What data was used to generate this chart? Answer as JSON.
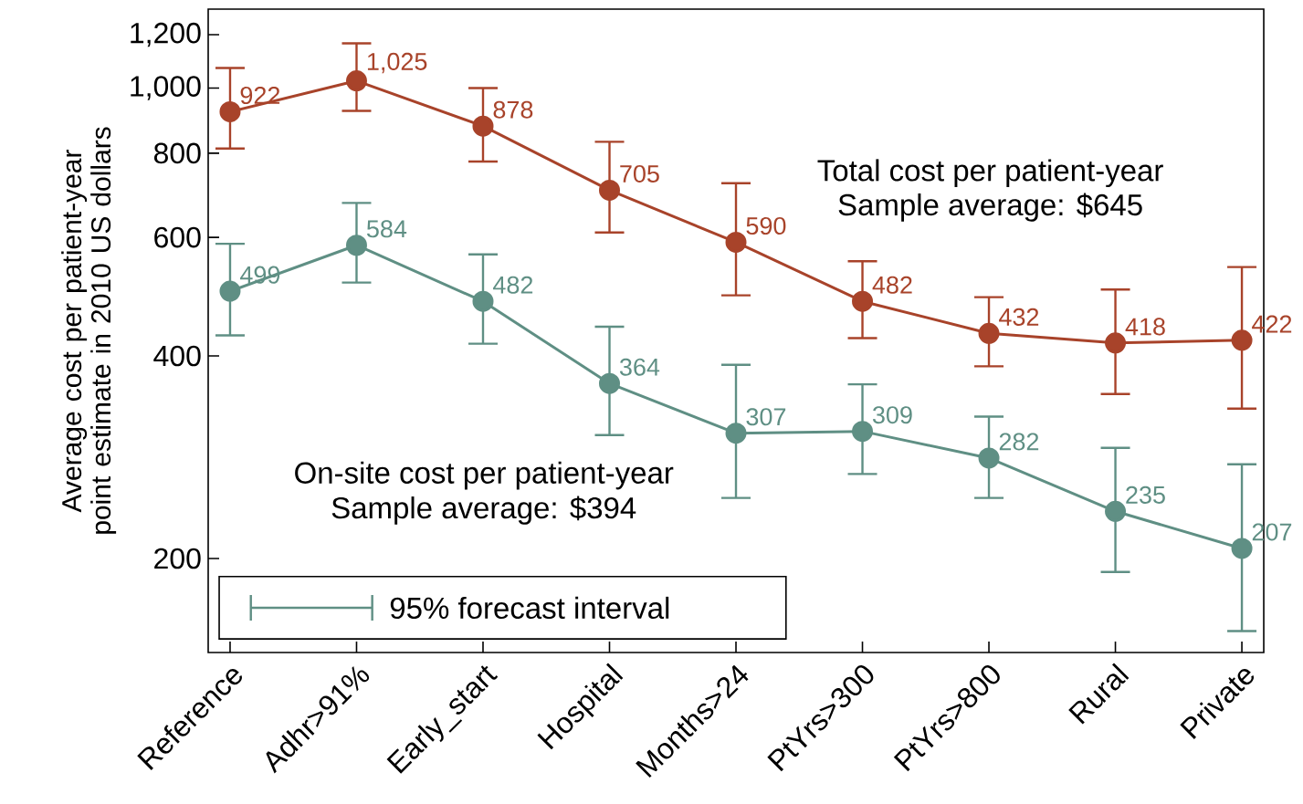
{
  "chart_data": {
    "type": "line",
    "log": "y",
    "ylabel": "Average cost per patient-year point estimate in 2010 US dollars",
    "categories": [
      "Reference",
      "Adhr>91%",
      "Early_start",
      "Hospital",
      "Months>24",
      "PtYrs>300",
      "PtYrs>800",
      "Rural",
      "Private"
    ],
    "series": [
      {
        "color": "#a8432a",
        "values": [
          922,
          1025,
          878,
          705,
          590,
          482,
          432,
          418,
          422
        ],
        "value_labels": [
          "922",
          "1,025",
          "878",
          "705",
          "590",
          "482",
          "432",
          "418",
          "422"
        ],
        "errors": [
          [
            813,
            1071
          ],
          [
            925,
            1165
          ],
          [
            778,
            1000
          ],
          [
            610,
            832
          ],
          [
            492,
            722
          ],
          [
            425,
            553
          ],
          [
            386,
            489
          ],
          [
            351,
            502
          ],
          [
            334,
            542
          ]
        ]
      },
      {
        "color": "#5f8f84",
        "values": [
          499,
          584,
          482,
          364,
          307,
          309,
          282,
          235,
          207
        ],
        "value_labels": [
          "499",
          "584",
          "482",
          "364",
          "307",
          "309",
          "282",
          "235",
          "207"
        ],
        "errors": [
          [
            429,
            587
          ],
          [
            514,
            675
          ],
          [
            417,
            566
          ],
          [
            305,
            442
          ],
          [
            246,
            388
          ],
          [
            267,
            363
          ],
          [
            246,
            325
          ],
          [
            191,
            292
          ],
          [
            156,
            276
          ]
        ]
      }
    ],
    "annotations": [
      "Total cost per patient-year",
      "Sample average: $645",
      "On-site cost per patient-year",
      "Sample average: $394"
    ],
    "legend_title": "95% forecast interval",
    "marker": "circle",
    "ylim": [
      145,
      1310
    ],
    "yticks": [
      200,
      400,
      600,
      800,
      {
        "value": 1000,
        "label": "1,000"
      },
      {
        "value": 1200,
        "label": "1,200"
      }
    ]
  }
}
